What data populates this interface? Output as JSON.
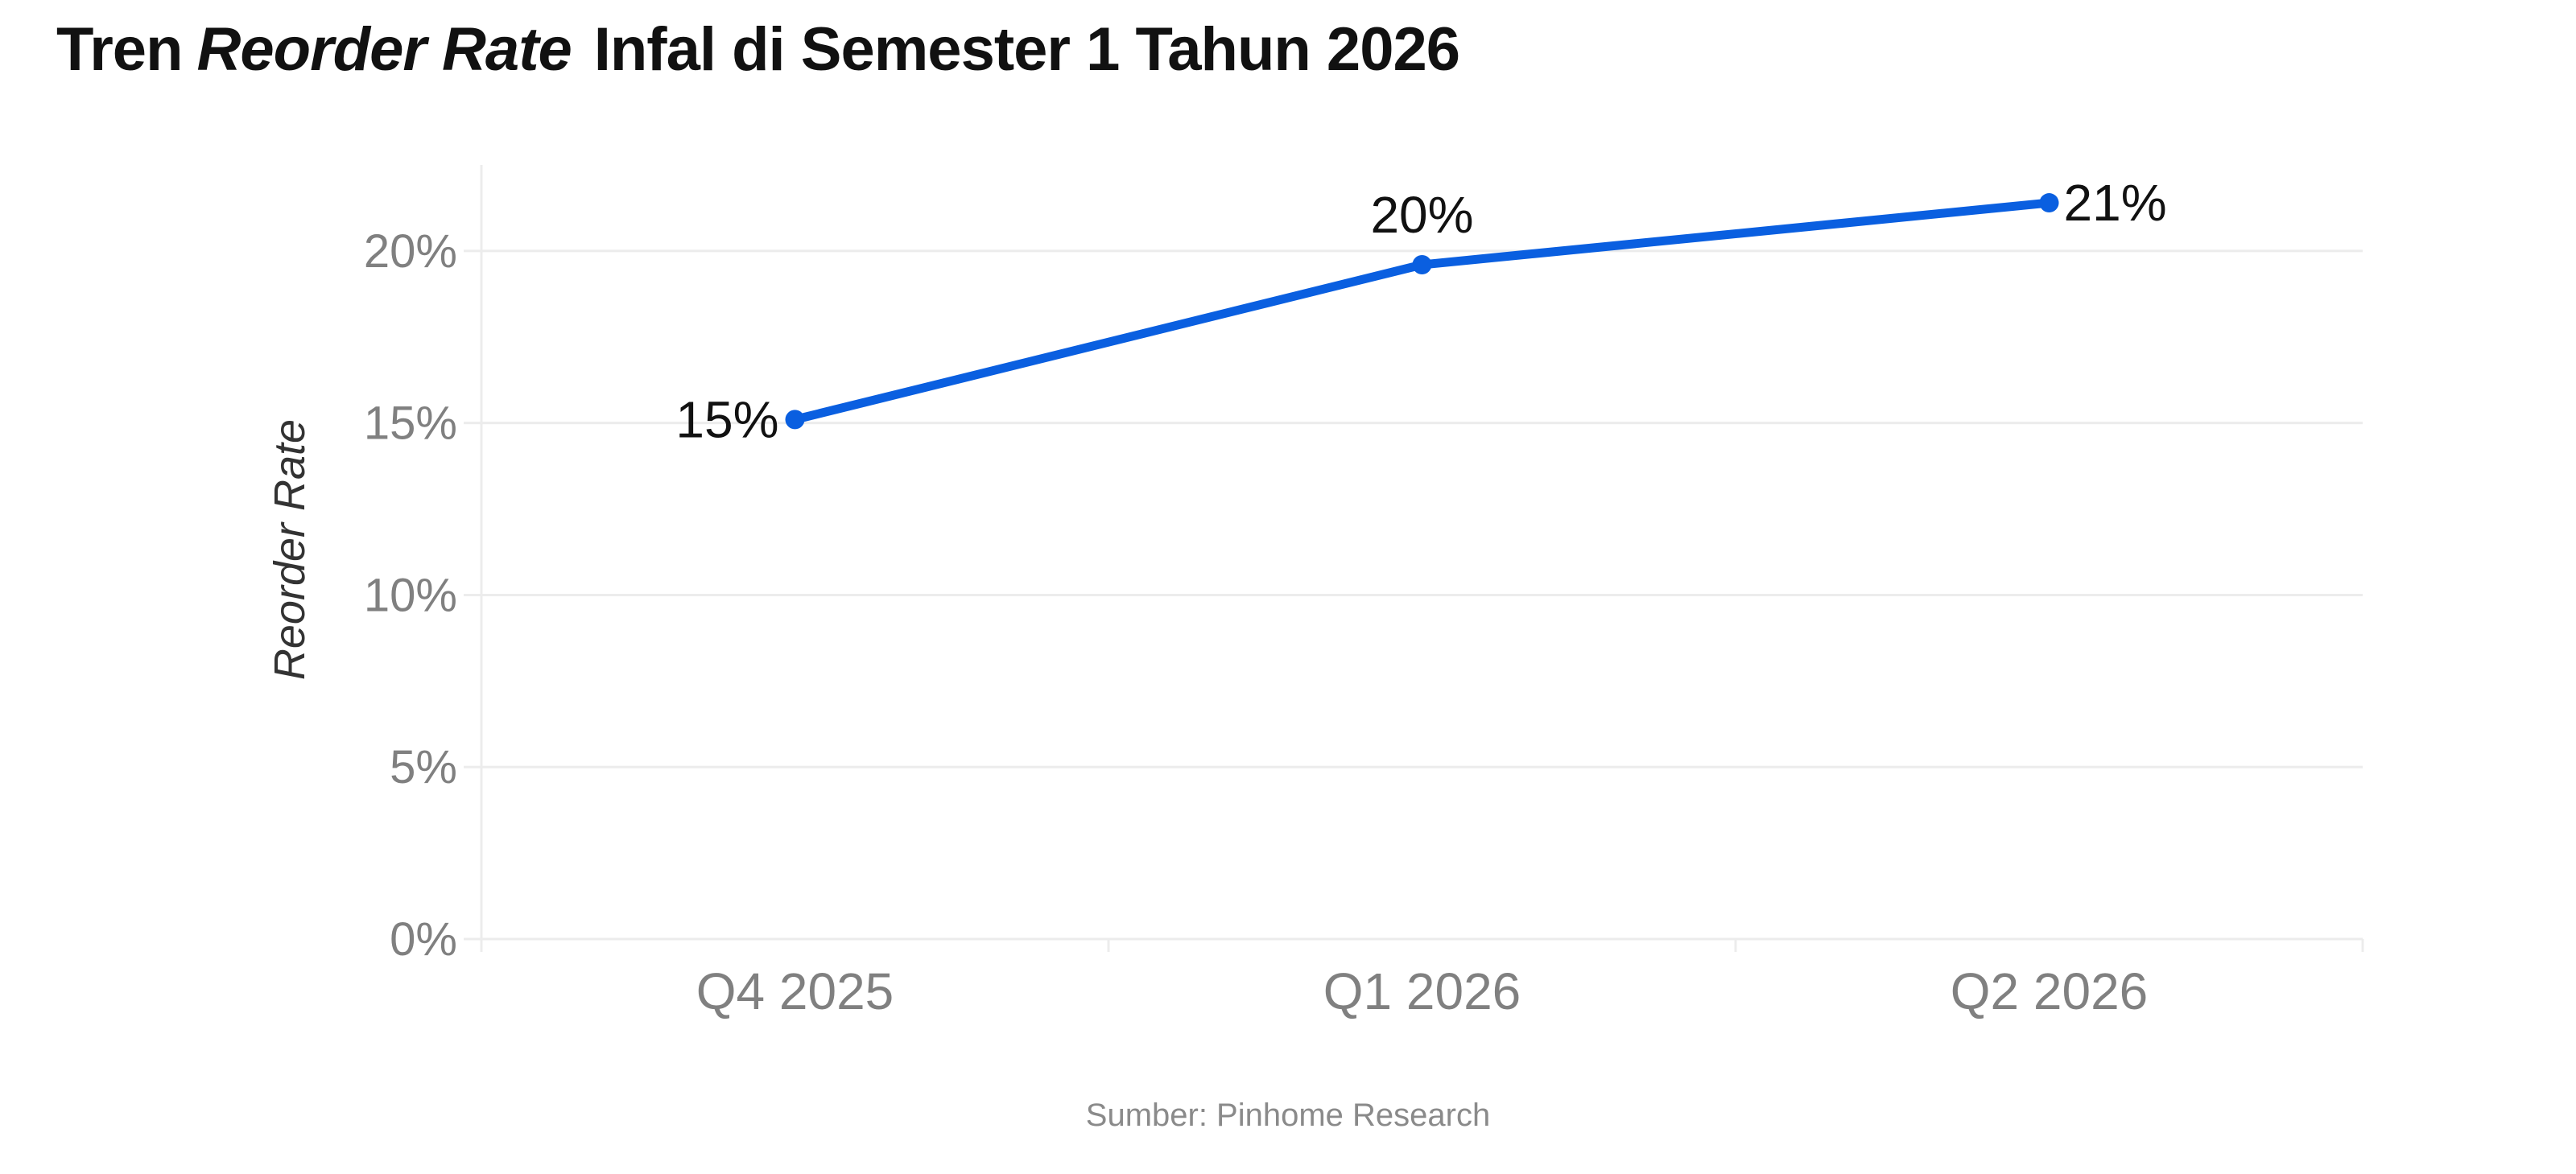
{
  "header": {
    "title_prefix": "Tren",
    "title_italic": "Reorder Rate",
    "title_suffix": "Infal di Semester 1 Tahun 2026"
  },
  "footer": {
    "source": "Sumber: Pinhome Research"
  },
  "chart_data": {
    "type": "line",
    "title": "Tren Reorder Rate Infal di Semester 1 Tahun 2026",
    "xlabel": "",
    "ylabel": "Reorder Rate",
    "categories": [
      "Q4 2025",
      "Q1 2026",
      "Q2 2026"
    ],
    "series": [
      {
        "values": [
          15.1,
          19.6,
          21.4
        ],
        "data_labels": [
          "15%",
          "20%",
          "21%"
        ],
        "color": "#0a5fe0"
      }
    ],
    "ylim": [
      0,
      22.5
    ],
    "yticks": [
      0,
      5,
      10,
      15,
      20
    ],
    "ytick_labels": [
      "0%",
      "5%",
      "10%",
      "15%",
      "20%"
    ],
    "grid": true,
    "legend": "none",
    "colors": {
      "line": "#0a5fe0",
      "grid": "#ececec",
      "tick_text": "#808080",
      "data_label_text": "#111111",
      "axis_label_text": "#333333"
    }
  }
}
